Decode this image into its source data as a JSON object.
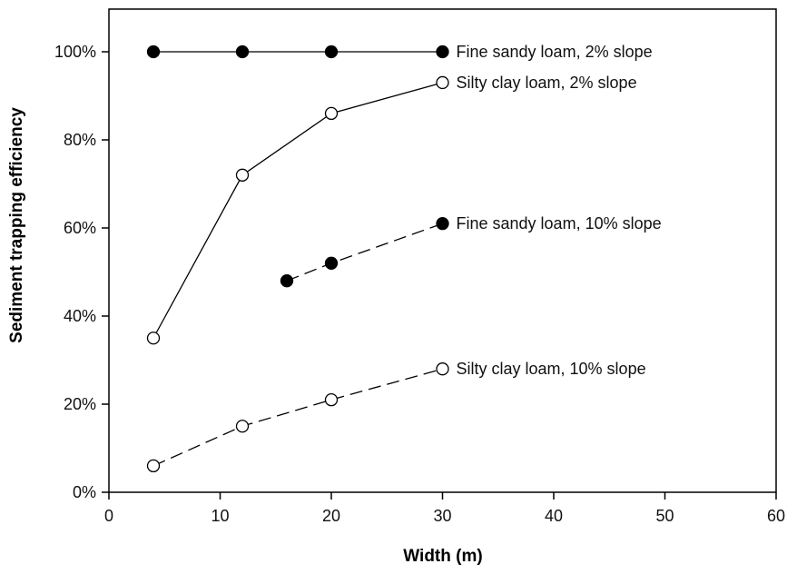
{
  "chart_data": {
    "type": "line",
    "title": "",
    "xlabel": "Width (m)",
    "ylabel": "Sediment trapping efficiency",
    "xlim": [
      0,
      60
    ],
    "ylim": [
      0,
      100
    ],
    "x_ticks": [
      0,
      10,
      20,
      30,
      40,
      50,
      60
    ],
    "y_ticks": [
      0,
      20,
      40,
      60,
      80,
      100
    ],
    "y_tick_labels": [
      "0%",
      "20%",
      "40%",
      "60%",
      "80%",
      "100%"
    ],
    "grid": false,
    "legend": "inline labels at line ends",
    "series": [
      {
        "name": "Fine sandy loam, 2% slope",
        "marker": "filled-circle",
        "line_style": "solid",
        "points": [
          {
            "x": 4,
            "y": 100
          },
          {
            "x": 12,
            "y": 100
          },
          {
            "x": 20,
            "y": 100
          },
          {
            "x": 30,
            "y": 100
          }
        ]
      },
      {
        "name": "Silty clay loam, 2% slope",
        "marker": "open-circle",
        "line_style": "solid",
        "points": [
          {
            "x": 4,
            "y": 35
          },
          {
            "x": 12,
            "y": 72
          },
          {
            "x": 20,
            "y": 86
          },
          {
            "x": 30,
            "y": 93
          }
        ]
      },
      {
        "name": "Fine sandy loam, 10% slope",
        "marker": "filled-circle",
        "line_style": "dashed",
        "points": [
          {
            "x": 16,
            "y": 48
          },
          {
            "x": 20,
            "y": 52
          },
          {
            "x": 30,
            "y": 61
          }
        ]
      },
      {
        "name": "Silty clay loam, 10% slope",
        "marker": "open-circle",
        "line_style": "dashed",
        "points": [
          {
            "x": 4,
            "y": 6
          },
          {
            "x": 12,
            "y": 15
          },
          {
            "x": 20,
            "y": 21
          },
          {
            "x": 30,
            "y": 28
          }
        ]
      }
    ]
  }
}
